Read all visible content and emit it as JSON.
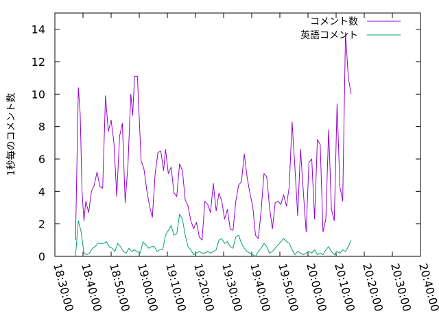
{
  "chart_data": {
    "type": "line",
    "ylabel": "1秒毎のコメント数",
    "ylim": [
      0,
      15
    ],
    "y_ticks": [
      0,
      2,
      4,
      6,
      8,
      10,
      12,
      14
    ],
    "x_range": [
      "18:30:00",
      "20:40:00"
    ],
    "x_ticks": [
      "18:30:00",
      "18:40:00",
      "18:50:00",
      "19:00:00",
      "19:10:00",
      "19:20:00",
      "19:30:00",
      "19:40:00",
      "19:50:00",
      "20:00:00",
      "20:10:00",
      "20:20:00",
      "20:30:00",
      "20:40:00"
    ],
    "legend_position": "top-right",
    "grid": false,
    "series": [
      {
        "name": "コメント数",
        "color": "#9400d3",
        "points": [
          [
            "18:37:20",
            1.0
          ],
          [
            "18:38:20",
            10.4
          ],
          [
            "18:39:00",
            8.8
          ],
          [
            "18:39:40",
            4.0
          ],
          [
            "18:40:20",
            2.2
          ],
          [
            "18:41:00",
            3.4
          ],
          [
            "18:42:00",
            2.7
          ],
          [
            "18:43:00",
            4.0
          ],
          [
            "18:44:00",
            4.4
          ],
          [
            "18:45:00",
            5.2
          ],
          [
            "18:46:00",
            4.3
          ],
          [
            "18:47:00",
            4.2
          ],
          [
            "18:48:00",
            9.9
          ],
          [
            "18:49:00",
            7.7
          ],
          [
            "18:50:00",
            8.4
          ],
          [
            "18:51:00",
            7.0
          ],
          [
            "18:52:00",
            3.7
          ],
          [
            "18:53:00",
            7.4
          ],
          [
            "18:54:00",
            8.2
          ],
          [
            "18:55:00",
            3.3
          ],
          [
            "18:56:00",
            5.7
          ],
          [
            "18:57:00",
            10.0
          ],
          [
            "18:57:40",
            8.7
          ],
          [
            "18:58:20",
            11.1
          ],
          [
            "18:59:20",
            11.1
          ],
          [
            "19:00:40",
            5.9
          ],
          [
            "19:01:40",
            5.4
          ],
          [
            "19:02:40",
            4.1
          ],
          [
            "19:03:40",
            3.1
          ],
          [
            "19:04:40",
            2.4
          ],
          [
            "19:05:40",
            5.1
          ],
          [
            "19:06:40",
            6.4
          ],
          [
            "19:07:40",
            6.5
          ],
          [
            "19:08:40",
            5.3
          ],
          [
            "19:09:20",
            6.6
          ],
          [
            "19:10:20",
            5.1
          ],
          [
            "19:11:20",
            5.5
          ],
          [
            "19:12:20",
            3.9
          ],
          [
            "19:13:20",
            3.7
          ],
          [
            "19:14:20",
            5.7
          ],
          [
            "19:15:20",
            5.3
          ],
          [
            "19:16:20",
            3.5
          ],
          [
            "19:17:20",
            3.1
          ],
          [
            "19:18:20",
            2.2
          ],
          [
            "19:19:20",
            1.7
          ],
          [
            "19:20:20",
            2.1
          ],
          [
            "19:21:20",
            1.2
          ],
          [
            "19:22:20",
            1.0
          ],
          [
            "19:23:20",
            3.4
          ],
          [
            "19:24:20",
            3.2
          ],
          [
            "19:25:20",
            2.7
          ],
          [
            "19:26:20",
            4.5
          ],
          [
            "19:27:20",
            2.8
          ],
          [
            "19:28:20",
            3.9
          ],
          [
            "19:29:20",
            3.4
          ],
          [
            "19:30:20",
            2.3
          ],
          [
            "19:31:20",
            2.9
          ],
          [
            "19:32:20",
            1.7
          ],
          [
            "19:33:20",
            1.6
          ],
          [
            "19:34:20",
            3.4
          ],
          [
            "19:35:20",
            4.4
          ],
          [
            "19:36:20",
            4.6
          ],
          [
            "19:37:20",
            6.3
          ],
          [
            "19:38:20",
            4.9
          ],
          [
            "19:39:20",
            3.9
          ],
          [
            "19:40:20",
            3.1
          ],
          [
            "19:41:20",
            1.3
          ],
          [
            "19:42:20",
            1.1
          ],
          [
            "19:43:20",
            2.8
          ],
          [
            "19:44:20",
            5.1
          ],
          [
            "19:45:20",
            4.9
          ],
          [
            "19:46:20",
            3.0
          ],
          [
            "19:47:20",
            1.7
          ],
          [
            "19:48:20",
            3.3
          ],
          [
            "19:49:20",
            3.4
          ],
          [
            "19:50:20",
            3.2
          ],
          [
            "19:51:20",
            3.8
          ],
          [
            "19:52:20",
            3.1
          ],
          [
            "19:53:20",
            4.3
          ],
          [
            "19:54:20",
            8.3
          ],
          [
            "19:55:20",
            5.5
          ],
          [
            "19:56:20",
            2.5
          ],
          [
            "19:57:20",
            6.6
          ],
          [
            "19:58:20",
            4.0
          ],
          [
            "19:59:20",
            1.5
          ],
          [
            "20:00:20",
            5.8
          ],
          [
            "20:01:20",
            6.0
          ],
          [
            "20:02:20",
            2.3
          ],
          [
            "20:03:20",
            7.2
          ],
          [
            "20:04:20",
            6.9
          ],
          [
            "20:05:20",
            1.5
          ],
          [
            "20:06:20",
            2.3
          ],
          [
            "20:07:20",
            7.8
          ],
          [
            "20:08:20",
            2.9
          ],
          [
            "20:09:20",
            2.2
          ],
          [
            "20:10:20",
            9.4
          ],
          [
            "20:11:20",
            4.3
          ],
          [
            "20:12:20",
            3.4
          ],
          [
            "20:13:20",
            13.8
          ],
          [
            "20:14:20",
            11.0
          ],
          [
            "20:15:20",
            10.0
          ]
        ]
      },
      {
        "name": "英語コメント",
        "color": "#009e73",
        "points": [
          [
            "18:37:20",
            0.0
          ],
          [
            "18:38:20",
            2.2
          ],
          [
            "18:39:20",
            1.5
          ],
          [
            "18:40:20",
            0.2
          ],
          [
            "18:41:20",
            0.1
          ],
          [
            "18:42:20",
            0.2
          ],
          [
            "18:43:20",
            0.5
          ],
          [
            "18:44:20",
            0.6
          ],
          [
            "18:45:20",
            0.8
          ],
          [
            "18:46:20",
            0.8
          ],
          [
            "18:47:20",
            0.8
          ],
          [
            "18:48:20",
            0.9
          ],
          [
            "18:49:20",
            0.6
          ],
          [
            "18:50:20",
            0.5
          ],
          [
            "18:51:20",
            0.3
          ],
          [
            "18:52:20",
            0.8
          ],
          [
            "18:53:20",
            0.6
          ],
          [
            "18:54:20",
            0.3
          ],
          [
            "18:55:20",
            0.2
          ],
          [
            "18:56:20",
            0.5
          ],
          [
            "18:57:20",
            0.3
          ],
          [
            "18:58:20",
            0.4
          ],
          [
            "18:59:20",
            0.3
          ],
          [
            "19:00:20",
            0.2
          ],
          [
            "19:01:20",
            0.9
          ],
          [
            "19:02:20",
            0.7
          ],
          [
            "19:03:20",
            0.5
          ],
          [
            "19:04:20",
            0.6
          ],
          [
            "19:05:20",
            0.6
          ],
          [
            "19:06:20",
            0.3
          ],
          [
            "19:07:20",
            0.4
          ],
          [
            "19:08:20",
            0.4
          ],
          [
            "19:09:20",
            1.3
          ],
          [
            "19:10:20",
            1.6
          ],
          [
            "19:11:20",
            1.9
          ],
          [
            "19:12:20",
            1.3
          ],
          [
            "19:13:20",
            1.4
          ],
          [
            "19:14:20",
            2.6
          ],
          [
            "19:15:20",
            2.3
          ],
          [
            "19:16:20",
            1.3
          ],
          [
            "19:17:20",
            0.6
          ],
          [
            "19:18:20",
            0.4
          ],
          [
            "19:19:20",
            0.1
          ],
          [
            "19:20:20",
            0.2
          ],
          [
            "19:21:20",
            0.3
          ],
          [
            "19:22:20",
            0.2
          ],
          [
            "19:23:20",
            0.2
          ],
          [
            "19:24:20",
            0.3
          ],
          [
            "19:25:20",
            0.2
          ],
          [
            "19:26:20",
            0.3
          ],
          [
            "19:27:20",
            0.4
          ],
          [
            "19:28:20",
            1.0
          ],
          [
            "19:29:20",
            1.1
          ],
          [
            "19:30:20",
            0.8
          ],
          [
            "19:31:20",
            0.9
          ],
          [
            "19:32:20",
            0.6
          ],
          [
            "19:33:20",
            0.5
          ],
          [
            "19:34:20",
            1.2
          ],
          [
            "19:35:20",
            1.3
          ],
          [
            "19:36:20",
            0.8
          ],
          [
            "19:37:20",
            0.5
          ],
          [
            "19:38:20",
            0.3
          ],
          [
            "19:39:20",
            0.2
          ],
          [
            "19:40:20",
            0.1
          ],
          [
            "19:41:20",
            0.0
          ],
          [
            "19:42:20",
            0.3
          ],
          [
            "19:43:20",
            0.5
          ],
          [
            "19:44:20",
            0.8
          ],
          [
            "19:45:20",
            0.6
          ],
          [
            "19:46:20",
            0.2
          ],
          [
            "19:47:20",
            0.3
          ],
          [
            "19:48:20",
            0.5
          ],
          [
            "19:49:20",
            0.7
          ],
          [
            "19:50:20",
            0.9
          ],
          [
            "19:51:20",
            1.1
          ],
          [
            "19:52:20",
            0.9
          ],
          [
            "19:53:20",
            0.8
          ],
          [
            "19:54:20",
            0.4
          ],
          [
            "19:55:20",
            0.1
          ],
          [
            "19:56:20",
            0.3
          ],
          [
            "19:57:20",
            0.2
          ],
          [
            "19:58:20",
            0.1
          ],
          [
            "19:59:20",
            0.2
          ],
          [
            "20:00:20",
            0.3
          ],
          [
            "20:01:20",
            0.2
          ],
          [
            "20:02:20",
            0.4
          ],
          [
            "20:03:20",
            0.1
          ],
          [
            "20:04:20",
            0.2
          ],
          [
            "20:05:20",
            0.1
          ],
          [
            "20:06:20",
            0.4
          ],
          [
            "20:07:20",
            0.6
          ],
          [
            "20:08:20",
            0.3
          ],
          [
            "20:09:20",
            0.1
          ],
          [
            "20:10:20",
            0.3
          ],
          [
            "20:11:20",
            0.2
          ],
          [
            "20:12:20",
            0.4
          ],
          [
            "20:13:20",
            0.3
          ],
          [
            "20:14:20",
            0.6
          ],
          [
            "20:15:20",
            1.0
          ]
        ]
      }
    ]
  }
}
